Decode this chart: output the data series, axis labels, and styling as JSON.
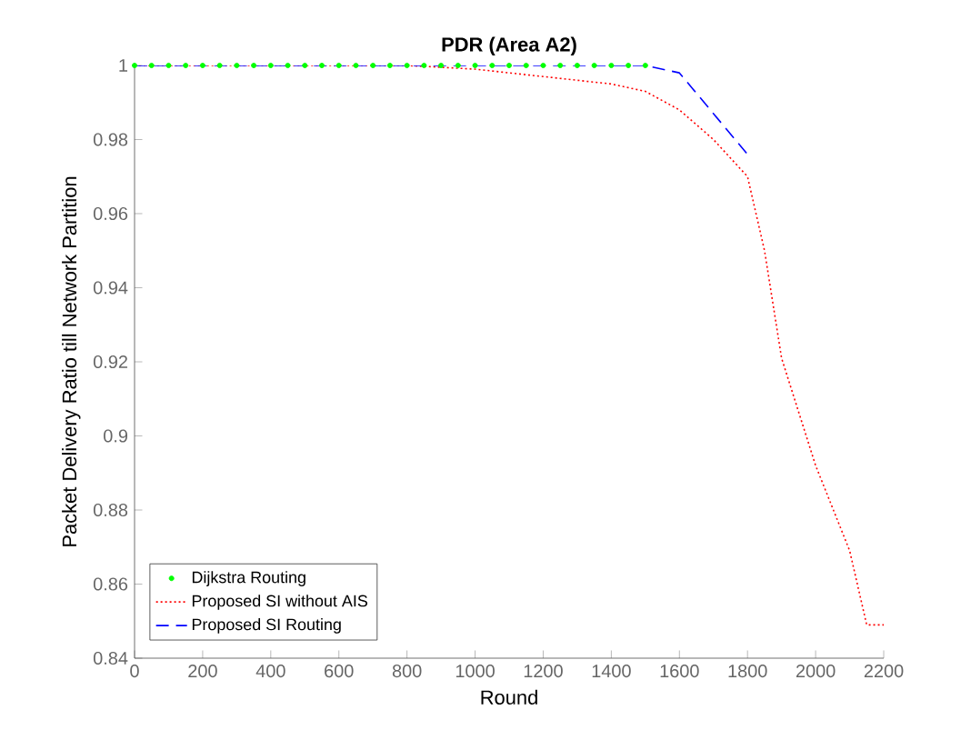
{
  "chart_data": {
    "type": "line",
    "title": "**PDR (Area A2)**",
    "xlabel": "Round",
    "ylabel": "Packet Delivery Ratio till Network Partition",
    "xlim": [
      0,
      2200
    ],
    "ylim": [
      0.84,
      1
    ],
    "xticks": [
      0,
      200,
      400,
      600,
      800,
      1000,
      1200,
      1400,
      1600,
      1800,
      2000,
      2200
    ],
    "yticks": [
      0.84,
      0.86,
      0.88,
      0.9,
      0.92,
      0.94,
      0.96,
      0.98,
      1
    ],
    "legend": "bottom left",
    "grid": false,
    "series": [
      {
        "name": "Dijkstra Routing",
        "type": "scatter",
        "marker": "circle",
        "color": "#00ff00",
        "x": [
          0,
          50,
          100,
          150,
          200,
          250,
          300,
          350,
          400,
          450,
          500,
          550,
          600,
          650,
          700,
          750,
          800,
          850,
          900,
          950,
          1000,
          1050,
          1100,
          1150,
          1200,
          1250,
          1300,
          1350,
          1400,
          1450,
          1500
        ],
        "values": [
          1,
          1,
          1,
          1,
          1,
          1,
          1,
          1,
          1,
          1,
          1,
          1,
          1,
          1,
          1,
          1,
          1,
          1,
          1,
          1,
          1,
          1,
          1,
          1,
          1,
          1,
          1,
          1,
          1,
          1,
          1
        ]
      },
      {
        "name": "Proposed SI without AIS",
        "line_style": "dotted",
        "color": "#ff0000",
        "x": [
          0,
          800,
          1000,
          1200,
          1400,
          1500,
          1600,
          1700,
          1800,
          1850,
          1900,
          2000,
          2100,
          2150,
          2200
        ],
        "values": [
          1,
          1,
          0.999,
          0.997,
          0.995,
          0.993,
          0.988,
          0.98,
          0.97,
          0.95,
          0.921,
          0.892,
          0.869,
          0.849,
          0.849
        ]
      },
      {
        "name": "Proposed SI Routing",
        "line_style": "dashed",
        "color": "#0000ff",
        "x": [
          0,
          1500,
          1600,
          1800
        ],
        "values": [
          1,
          1,
          0.998,
          0.976
        ]
      }
    ]
  }
}
